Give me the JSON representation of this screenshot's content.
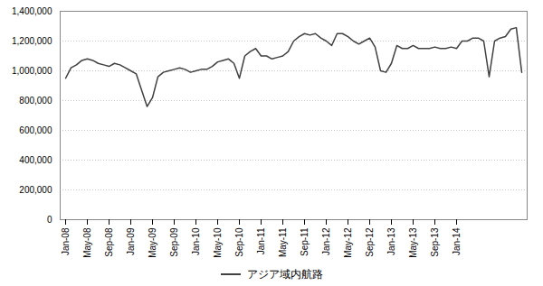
{
  "chart_data": {
    "type": "line",
    "categories": [
      "Jan-08",
      null,
      null,
      null,
      "May-08",
      null,
      null,
      null,
      "Sep-08",
      null,
      null,
      null,
      "Jan-09",
      null,
      null,
      null,
      "May-09",
      null,
      null,
      null,
      "Sep-09",
      null,
      null,
      null,
      "Jan-10",
      null,
      null,
      null,
      "May-10",
      null,
      null,
      null,
      "Sep-10",
      null,
      null,
      null,
      "Jan-11",
      null,
      null,
      null,
      "May-11",
      null,
      null,
      null,
      "Sep-11",
      null,
      null,
      null,
      "Jan-12",
      null,
      null,
      null,
      "May-12",
      null,
      null,
      null,
      "Sep-12",
      null,
      null,
      null,
      "Jan-13",
      null,
      null,
      null,
      "May-13",
      null,
      null,
      null,
      "Sep-13",
      null,
      null,
      null,
      "Jan-14",
      null,
      null,
      null,
      null,
      null,
      null,
      null,
      null,
      null,
      null,
      null,
      null
    ],
    "series": [
      {
        "name": "アジア域内航路",
        "color": "#404040",
        "values": [
          950000,
          1020000,
          1040000,
          1070000,
          1080000,
          1070000,
          1050000,
          1040000,
          1030000,
          1050000,
          1040000,
          1020000,
          1000000,
          980000,
          870000,
          760000,
          820000,
          960000,
          990000,
          1000000,
          1010000,
          1020000,
          1010000,
          990000,
          1000000,
          1010000,
          1010000,
          1030000,
          1060000,
          1070000,
          1080000,
          1050000,
          950000,
          1100000,
          1130000,
          1150000,
          1100000,
          1100000,
          1080000,
          1090000,
          1100000,
          1130000,
          1200000,
          1230000,
          1250000,
          1240000,
          1250000,
          1220000,
          1200000,
          1170000,
          1250000,
          1250000,
          1230000,
          1200000,
          1180000,
          1200000,
          1220000,
          1160000,
          1000000,
          990000,
          1050000,
          1170000,
          1150000,
          1150000,
          1170000,
          1150000,
          1150000,
          1150000,
          1160000,
          1150000,
          1150000,
          1160000,
          1150000,
          1200000,
          1200000,
          1220000,
          1220000,
          1200000,
          960000,
          1200000,
          1220000,
          1230000,
          1280000,
          1290000,
          990000
        ]
      }
    ],
    "ylim": [
      0,
      1400000
    ],
    "yticks": [
      0,
      {
        "value": 200000,
        "label": "200,000"
      },
      {
        "value": 400000,
        "label": "400,000"
      },
      {
        "value": 600000,
        "label": "600,000"
      },
      {
        "value": 800000,
        "label": "800,000"
      },
      {
        "value": 1000000,
        "label": "1,000,000"
      },
      {
        "value": 1200000,
        "label": "1,200,000"
      },
      {
        "value": 1400000,
        "label": "1,400,000"
      }
    ],
    "grid": true,
    "legend": "bottom"
  }
}
